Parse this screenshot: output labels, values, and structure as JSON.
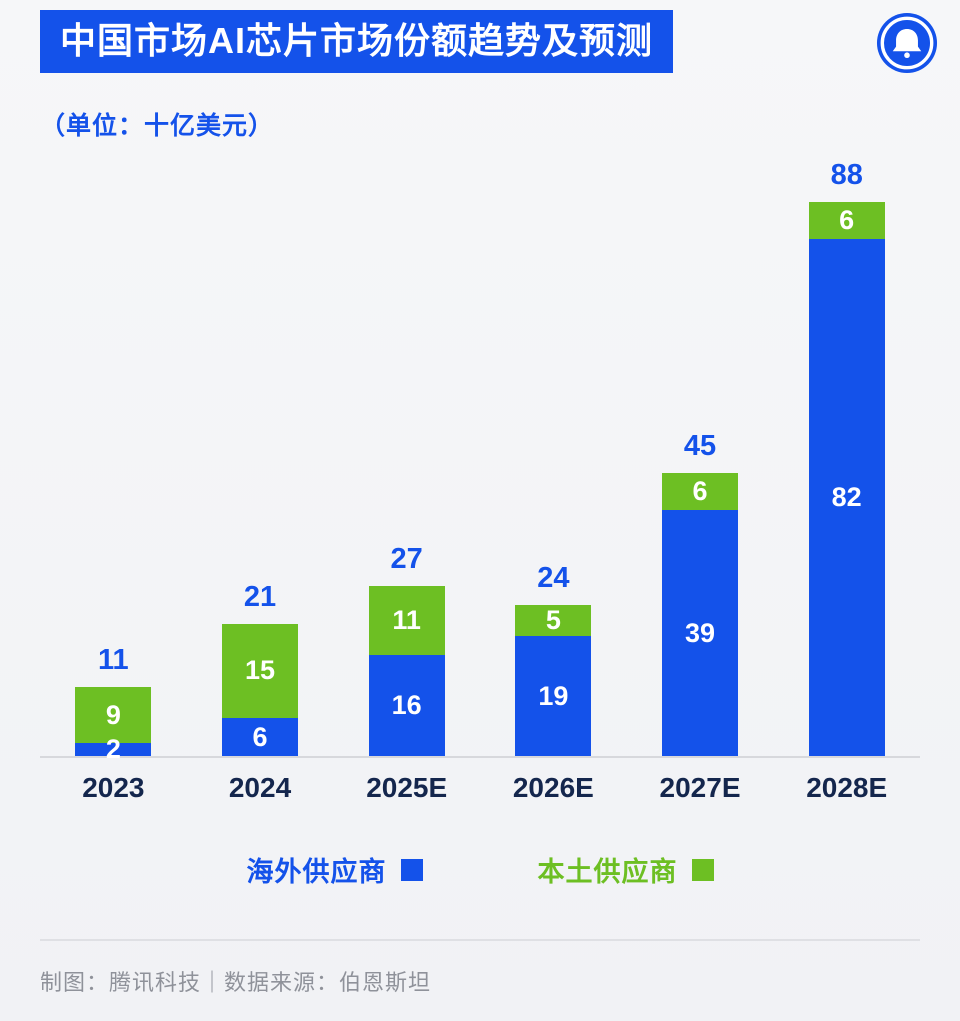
{
  "page": {
    "title": "中国市场AI芯片市场份额趋势及预测",
    "unit_note": "（单位：十亿美元）",
    "footer": "制图：腾讯科技｜数据来源：伯恩斯坦"
  },
  "colors": {
    "accent_blue": "#1452ea",
    "accent_green": "#6dbf23",
    "axis_label_navy": "#14264d",
    "footer_gray": "#8f929a",
    "background": "#f3f4f6"
  },
  "legend": [
    {
      "label": "海外供应商",
      "color": "#1452ea"
    },
    {
      "label": "本土供应商",
      "color": "#6dbf23"
    }
  ],
  "logo": {
    "name": "tencent-tech-bell-logo",
    "color": "#1452ea"
  },
  "chart_data": {
    "type": "bar",
    "stacked": true,
    "title": "中国市场AI芯片市场份额趋势及预测",
    "unit": "十亿美元",
    "categories": [
      "2023",
      "2024",
      "2025E",
      "2026E",
      "2027E",
      "2028E"
    ],
    "series": [
      {
        "name": "海外供应商",
        "color": "#1452ea",
        "values": [
          2,
          6,
          16,
          19,
          39,
          82
        ]
      },
      {
        "name": "本土供应商",
        "color": "#6dbf23",
        "values": [
          9,
          15,
          11,
          5,
          6,
          6
        ]
      }
    ],
    "totals": [
      11,
      21,
      27,
      24,
      45,
      88
    ],
    "ylim": [
      0,
      92
    ],
    "grid": false,
    "legend_position": "bottom",
    "value_labels": "inside-segments-white, totals-above-blue"
  }
}
